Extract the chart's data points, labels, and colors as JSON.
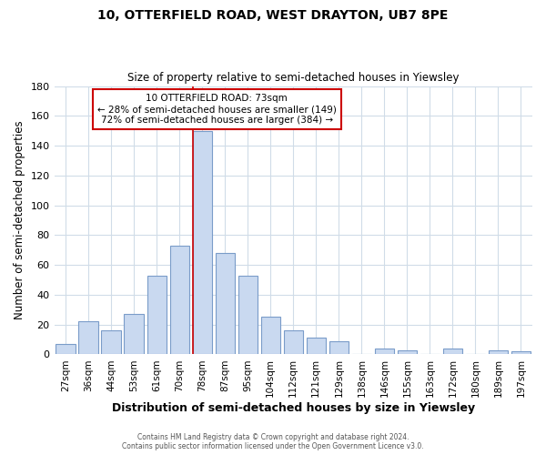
{
  "title_line1": "10, OTTERFIELD ROAD, WEST DRAYTON, UB7 8PE",
  "title_line2": "Size of property relative to semi-detached houses in Yiewsley",
  "xlabel": "Distribution of semi-detached houses by size in Yiewsley",
  "ylabel": "Number of semi-detached properties",
  "categories": [
    "27sqm",
    "36sqm",
    "44sqm",
    "53sqm",
    "61sqm",
    "70sqm",
    "78sqm",
    "87sqm",
    "95sqm",
    "104sqm",
    "112sqm",
    "121sqm",
    "129sqm",
    "138sqm",
    "146sqm",
    "155sqm",
    "163sqm",
    "172sqm",
    "180sqm",
    "189sqm",
    "197sqm"
  ],
  "values": [
    7,
    22,
    16,
    27,
    53,
    73,
    150,
    68,
    53,
    25,
    16,
    11,
    9,
    0,
    4,
    3,
    0,
    4,
    0,
    3,
    2
  ],
  "bar_color": "#c9d9f0",
  "bar_edge_color": "#7a9cc9",
  "vline_x_index": 6,
  "annotation_title": "10 OTTERFIELD ROAD: 73sqm",
  "annotation_line1": "← 28% of semi-detached houses are smaller (149)",
  "annotation_line2": "72% of semi-detached houses are larger (384) →",
  "annotation_box_color": "#ffffff",
  "annotation_box_edge": "#cc0000",
  "vline_color": "#cc0000",
  "ylim": [
    0,
    180
  ],
  "yticks": [
    0,
    20,
    40,
    60,
    80,
    100,
    120,
    140,
    160,
    180
  ],
  "footer_line1": "Contains HM Land Registry data © Crown copyright and database right 2024.",
  "footer_line2": "Contains public sector information licensed under the Open Government Licence v3.0.",
  "background_color": "#ffffff",
  "grid_color": "#d0dce8"
}
